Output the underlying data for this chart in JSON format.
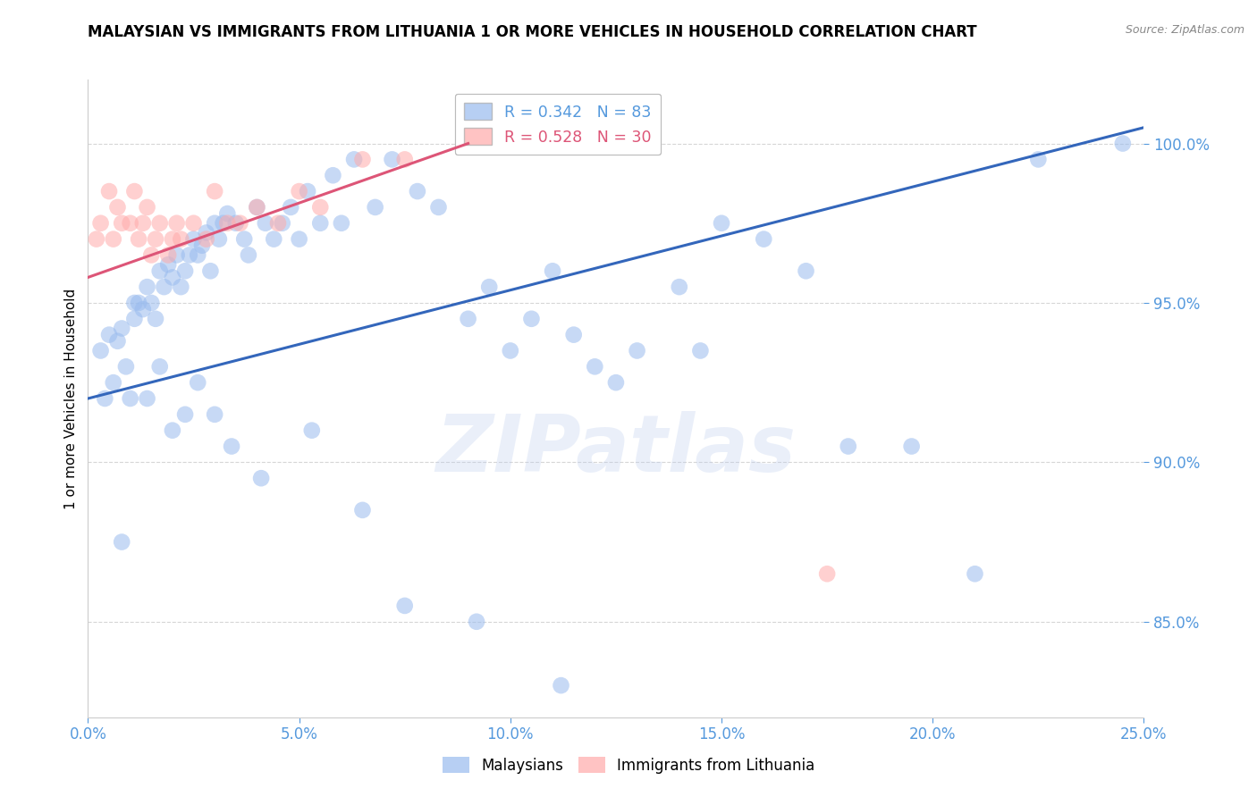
{
  "title": "MALAYSIAN VS IMMIGRANTS FROM LITHUANIA 1 OR MORE VEHICLES IN HOUSEHOLD CORRELATION CHART",
  "source": "Source: ZipAtlas.com",
  "ylabel": "1 or more Vehicles in Household",
  "xlim": [
    0.0,
    25.0
  ],
  "ylim": [
    82.0,
    102.0
  ],
  "xticks": [
    0.0,
    5.0,
    10.0,
    15.0,
    20.0,
    25.0
  ],
  "xticklabels": [
    "0.0%",
    "5.0%",
    "10.0%",
    "15.0%",
    "20.0%",
    "25.0%"
  ],
  "yticks": [
    85.0,
    90.0,
    95.0,
    100.0
  ],
  "yticklabels": [
    "85.0%",
    "90.0%",
    "95.0%",
    "100.0%"
  ],
  "legend_blue_r": "R = 0.342",
  "legend_blue_n": "N = 83",
  "legend_pink_r": "R = 0.528",
  "legend_pink_n": "N = 30",
  "blue_color": "#99BBEE",
  "pink_color": "#FFAAAA",
  "blue_line_color": "#3366BB",
  "pink_line_color": "#DD5577",
  "axis_tick_color": "#5599DD",
  "watermark_text": "ZIPatlas",
  "blue_scatter_x": [
    0.3,
    0.5,
    0.6,
    0.7,
    0.8,
    0.9,
    1.0,
    1.1,
    1.2,
    1.3,
    1.4,
    1.5,
    1.6,
    1.7,
    1.8,
    1.9,
    2.0,
    2.1,
    2.2,
    2.3,
    2.4,
    2.5,
    2.6,
    2.7,
    2.8,
    2.9,
    3.0,
    3.1,
    3.2,
    3.3,
    3.5,
    3.7,
    3.8,
    4.0,
    4.2,
    4.4,
    4.6,
    4.8,
    5.0,
    5.2,
    5.5,
    5.8,
    6.0,
    6.3,
    6.8,
    7.2,
    7.8,
    8.3,
    9.0,
    9.5,
    10.0,
    10.5,
    11.0,
    11.5,
    12.0,
    12.5,
    13.0,
    14.0,
    14.5,
    15.0,
    16.0,
    17.0,
    18.0,
    19.5,
    21.0,
    22.5,
    0.4,
    0.8,
    1.1,
    1.4,
    1.7,
    2.0,
    2.3,
    2.6,
    3.0,
    3.4,
    4.1,
    5.3,
    6.5,
    7.5,
    9.2,
    11.2,
    24.5
  ],
  "blue_scatter_y": [
    93.5,
    94.0,
    92.5,
    93.8,
    94.2,
    93.0,
    92.0,
    94.5,
    95.0,
    94.8,
    95.5,
    95.0,
    94.5,
    96.0,
    95.5,
    96.2,
    95.8,
    96.5,
    95.5,
    96.0,
    96.5,
    97.0,
    96.5,
    96.8,
    97.2,
    96.0,
    97.5,
    97.0,
    97.5,
    97.8,
    97.5,
    97.0,
    96.5,
    98.0,
    97.5,
    97.0,
    97.5,
    98.0,
    97.0,
    98.5,
    97.5,
    99.0,
    97.5,
    99.5,
    98.0,
    99.5,
    98.5,
    98.0,
    94.5,
    95.5,
    93.5,
    94.5,
    96.0,
    94.0,
    93.0,
    92.5,
    93.5,
    95.5,
    93.5,
    97.5,
    97.0,
    96.0,
    90.5,
    90.5,
    86.5,
    99.5,
    92.0,
    87.5,
    95.0,
    92.0,
    93.0,
    91.0,
    91.5,
    92.5,
    91.5,
    90.5,
    89.5,
    91.0,
    88.5,
    85.5,
    85.0,
    83.0,
    100.0
  ],
  "pink_scatter_x": [
    0.2,
    0.3,
    0.5,
    0.6,
    0.7,
    0.8,
    1.0,
    1.1,
    1.2,
    1.3,
    1.4,
    1.5,
    1.6,
    1.7,
    1.9,
    2.0,
    2.1,
    2.2,
    2.5,
    2.8,
    3.0,
    3.3,
    3.6,
    4.0,
    4.5,
    5.0,
    5.5,
    6.5,
    7.5,
    17.5
  ],
  "pink_scatter_y": [
    97.0,
    97.5,
    98.5,
    97.0,
    98.0,
    97.5,
    97.5,
    98.5,
    97.0,
    97.5,
    98.0,
    96.5,
    97.0,
    97.5,
    96.5,
    97.0,
    97.5,
    97.0,
    97.5,
    97.0,
    98.5,
    97.5,
    97.5,
    98.0,
    97.5,
    98.5,
    98.0,
    99.5,
    99.5,
    86.5
  ],
  "blue_trend_x": [
    0.0,
    25.0
  ],
  "blue_trend_y": [
    92.0,
    100.5
  ],
  "pink_trend_x": [
    0.0,
    9.0
  ],
  "pink_trend_y": [
    95.8,
    100.0
  ]
}
